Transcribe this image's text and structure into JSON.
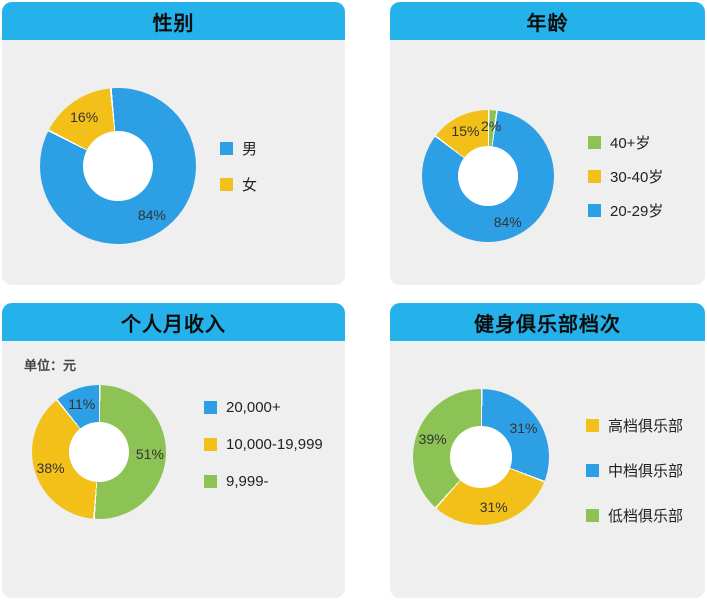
{
  "colors": {
    "header_bg": "#25b2ea",
    "panel_bg": "#efefef",
    "blue": "#2c9fe5",
    "yellow": "#f2c019",
    "green": "#8dc255",
    "title_text": "#0d0d0d"
  },
  "panels": [
    {
      "title": "性别",
      "legend": [
        {
          "label": "男",
          "color": "#2c9fe5"
        },
        {
          "label": "女",
          "color": "#f2c019"
        }
      ]
    },
    {
      "title": "年龄",
      "legend": [
        {
          "label": "40+岁",
          "color": "#8dc255"
        },
        {
          "label": "30-40岁",
          "color": "#f2c019"
        },
        {
          "label": "20-29岁",
          "color": "#2c9fe5"
        }
      ]
    },
    {
      "title": "个人月收入",
      "note": "单位：元",
      "legend": [
        {
          "label": "20,000+",
          "color": "#2c9fe5"
        },
        {
          "label": "10,000-19,999",
          "color": "#f2c019"
        },
        {
          "label": "9,999-",
          "color": "#8dc255"
        }
      ]
    },
    {
      "title": "健身俱乐部档次",
      "legend": [
        {
          "label": "高档俱乐部",
          "color": "#f2c019"
        },
        {
          "label": "中档俱乐部",
          "color": "#2c9fe5"
        },
        {
          "label": "低档俱乐部",
          "color": "#8dc255"
        }
      ]
    }
  ],
  "chart_data": [
    {
      "type": "pie",
      "donut": true,
      "title": "性别",
      "unit": "%",
      "start_deg": -6,
      "slices": [
        {
          "label": "男",
          "value": 84,
          "text": "84%",
          "color": "#2c9fe5"
        },
        {
          "label": "女",
          "value": 16,
          "text": "16%",
          "color": "#f2c019"
        }
      ]
    },
    {
      "type": "pie",
      "donut": true,
      "title": "年龄",
      "unit": "%",
      "start_deg": 0,
      "slices": [
        {
          "label": "40+岁",
          "value": 2,
          "text": "2%",
          "color": "#8dc255"
        },
        {
          "label": "20-29岁",
          "value": 84,
          "text": "84%",
          "color": "#2c9fe5"
        },
        {
          "label": "30-40岁",
          "value": 15,
          "text": "15%",
          "color": "#f2c019"
        }
      ]
    },
    {
      "type": "pie",
      "donut": true,
      "title": "个人月收入",
      "unit": "元",
      "start_deg": 0,
      "slices": [
        {
          "label": "9,999-",
          "value": 51,
          "text": "51%",
          "color": "#8dc255"
        },
        {
          "label": "10,000-19,999",
          "value": 38,
          "text": "38%",
          "color": "#f2c019"
        },
        {
          "label": "20,000+",
          "value": 11,
          "text": "11%",
          "color": "#2c9fe5"
        }
      ]
    },
    {
      "type": "pie",
      "donut": true,
      "title": "健身俱乐部档次",
      "unit": "%",
      "start_deg": 0,
      "slices": [
        {
          "label": "中档俱乐部",
          "value": 31,
          "text": "31%",
          "color": "#2c9fe5"
        },
        {
          "label": "高档俱乐部",
          "value": 31,
          "text": "31%",
          "color": "#f2c019"
        },
        {
          "label": "低档俱乐部",
          "value": 39,
          "text": "39%",
          "color": "#8dc255"
        }
      ]
    }
  ]
}
